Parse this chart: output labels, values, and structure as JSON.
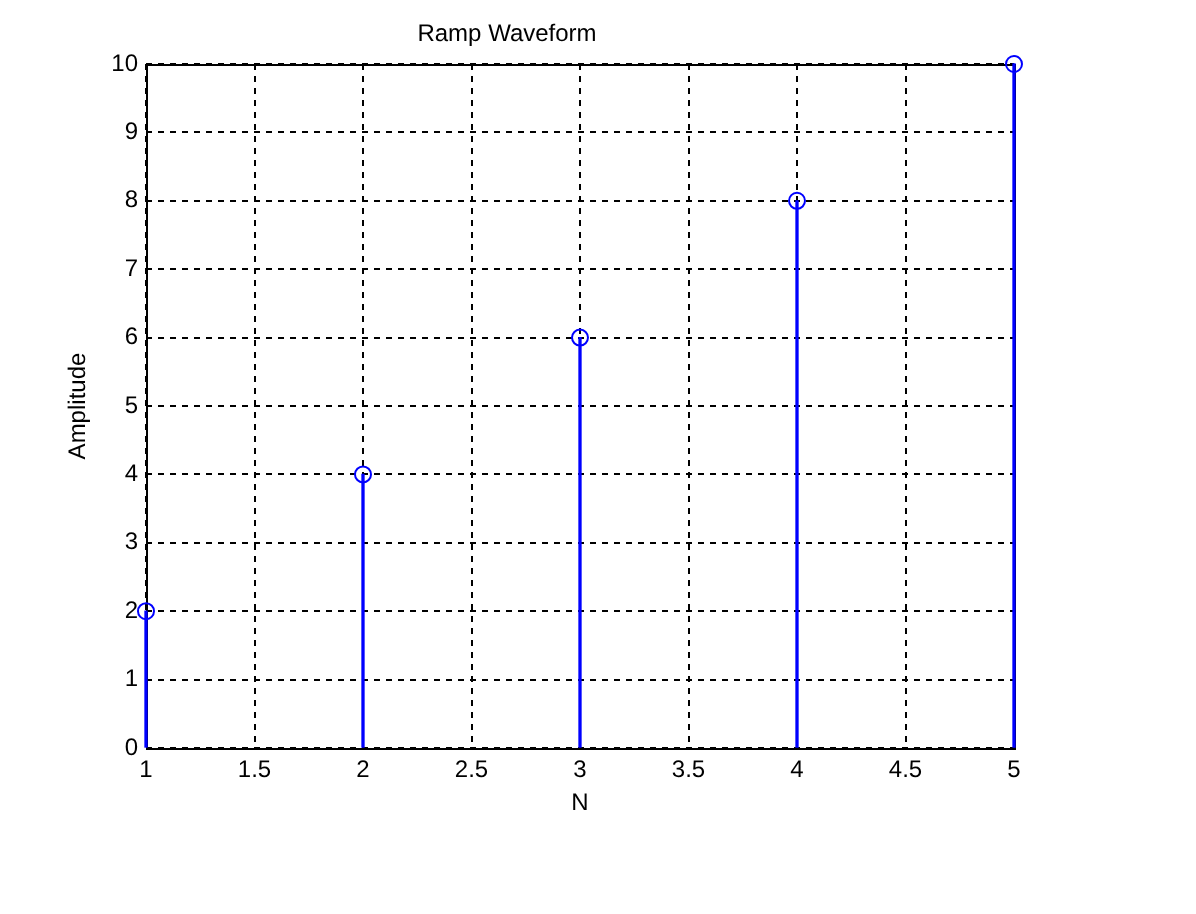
{
  "chart_data": {
    "type": "lollipop",
    "title": "Ramp Waveform",
    "xlabel": "N",
    "ylabel": "Amplitude",
    "x": [
      1,
      2,
      3,
      4,
      5
    ],
    "values": [
      2,
      4,
      6,
      8,
      10
    ],
    "color": "#0000ff",
    "xlim": [
      1,
      5
    ],
    "xticks": [
      1,
      1.5,
      2,
      2.5,
      3,
      3.5,
      4,
      4.5,
      5
    ],
    "ylim": [
      0,
      10
    ],
    "yticks": [
      0,
      1,
      2,
      3,
      4,
      5,
      6,
      7,
      8,
      9,
      10
    ],
    "grid": true,
    "marker": "circle"
  }
}
